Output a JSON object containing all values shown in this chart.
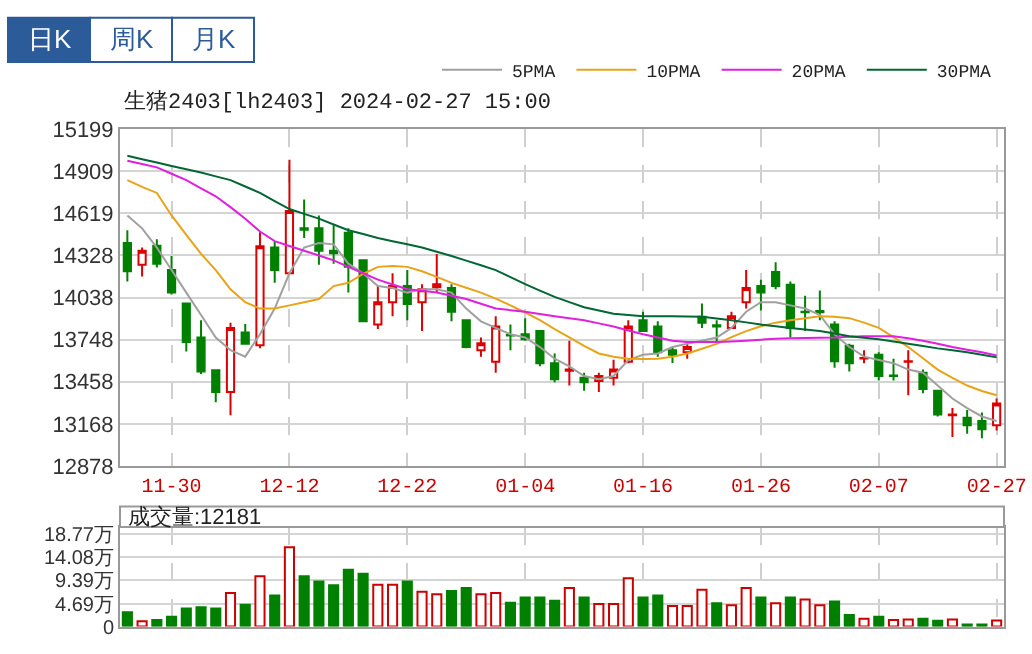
{
  "chart_data": [
    {
      "type": "candlestick",
      "title": "生猪2403[lh2403] 2024-02-27 15:00",
      "annotations": [
        "日K",
        "周K",
        "月K"
      ],
      "categories": [
        null,
        null,
        null,
        "11-30",
        null,
        null,
        null,
        null,
        null,
        null,
        null,
        "12-12",
        null,
        null,
        null,
        null,
        null,
        null,
        null,
        "12-22",
        null,
        null,
        null,
        null,
        null,
        null,
        null,
        "01-04",
        null,
        null,
        null,
        null,
        null,
        null,
        null,
        "01-16",
        null,
        null,
        null,
        null,
        null,
        null,
        null,
        "01-26",
        null,
        null,
        null,
        null,
        null,
        null,
        null,
        "02-07",
        null,
        null,
        null,
        null,
        null,
        null,
        null,
        "02-27"
      ],
      "ohlc": [
        [
          14413,
          14501,
          14148,
          14218
        ],
        [
          14263,
          14382,
          14183,
          14360
        ],
        [
          14395,
          14439,
          14245,
          14271
        ],
        [
          14227,
          14324,
          14059,
          14073
        ],
        [
          13997,
          13997,
          13666,
          13732
        ],
        [
          13763,
          13882,
          13511,
          13529
        ],
        [
          13538,
          13538,
          13317,
          13387
        ],
        [
          13387,
          13865,
          13228,
          13829
        ],
        [
          13798,
          13856,
          13719,
          13719
        ],
        [
          13710,
          14488,
          13688,
          14391
        ],
        [
          14382,
          14426,
          14139,
          14227
        ],
        [
          14205,
          14987,
          14205,
          14634
        ],
        [
          14514,
          14713,
          14448,
          14505
        ],
        [
          14514,
          14603,
          14263,
          14360
        ],
        [
          14360,
          14536,
          14271,
          14342
        ],
        [
          14484,
          14514,
          14072,
          14249
        ],
        [
          14294,
          14294,
          13874,
          13874
        ],
        [
          13852,
          14117,
          13821,
          14006
        ],
        [
          14006,
          14205,
          13909,
          14117
        ],
        [
          14117,
          14227,
          13882,
          13993
        ],
        [
          14006,
          14130,
          13807,
          14095
        ],
        [
          14108,
          14338,
          14072,
          14130
        ],
        [
          14103,
          14130,
          13874,
          13940
        ],
        [
          13882,
          13882,
          13688,
          13697
        ],
        [
          13675,
          13763,
          13631,
          13723
        ],
        [
          13595,
          13909,
          13520,
          13838
        ],
        [
          13780,
          13852,
          13675,
          13776
        ],
        [
          13785,
          13896,
          13741,
          13750
        ],
        [
          13807,
          13807,
          13564,
          13586
        ],
        [
          13586,
          13653,
          13454,
          13476
        ],
        [
          13534,
          13741,
          13432,
          13542
        ],
        [
          13485,
          13520,
          13396,
          13454
        ],
        [
          13463,
          13520,
          13387,
          13498
        ],
        [
          13485,
          13609,
          13432,
          13542
        ],
        [
          13595,
          13882,
          13586,
          13838
        ],
        [
          13882,
          13940,
          13807,
          13807
        ],
        [
          13838,
          13874,
          13631,
          13661
        ],
        [
          13675,
          13697,
          13587,
          13644
        ],
        [
          13661,
          13732,
          13617,
          13697
        ],
        [
          13905,
          13997,
          13829,
          13865
        ],
        [
          13847,
          13882,
          13719,
          13838
        ],
        [
          13829,
          13940,
          13821,
          13909
        ],
        [
          14006,
          14227,
          13962,
          14103
        ],
        [
          14117,
          14161,
          13949,
          14072
        ],
        [
          14214,
          14280,
          14095,
          14117
        ],
        [
          14126,
          14148,
          13763,
          13829
        ],
        [
          13940,
          14050,
          13807,
          13936
        ],
        [
          13945,
          14086,
          13882,
          13936
        ],
        [
          13852,
          13874,
          13555,
          13600
        ],
        [
          13706,
          13719,
          13529,
          13586
        ],
        [
          13618,
          13675,
          13586,
          13622
        ],
        [
          13644,
          13661,
          13467,
          13498
        ],
        [
          13502,
          13617,
          13467,
          13498
        ],
        [
          13595,
          13675,
          13365,
          13600
        ],
        [
          13520,
          13542,
          13379,
          13409
        ],
        [
          13396,
          13396,
          13219,
          13233
        ],
        [
          13228,
          13277,
          13078,
          13233
        ],
        [
          13211,
          13264,
          13100,
          13158
        ],
        [
          13188,
          13246,
          13069,
          13131
        ],
        [
          13158,
          13343,
          13122,
          13308
        ]
      ],
      "series": [
        {
          "name": "5PMA",
          "type": "line",
          "color": "#a0a0a0",
          "values": [
            14603,
            14514,
            14382,
            14227,
            14072,
            13918,
            13763,
            13675,
            13631,
            13785,
            13962,
            14205,
            14382,
            14413,
            14404,
            14271,
            14205,
            14117,
            14103,
            14072,
            14095,
            14095,
            14072,
            13962,
            13874,
            13829,
            13785,
            13763,
            13697,
            13617,
            13564,
            13498,
            13476,
            13498,
            13608,
            13644,
            13653,
            13697,
            13719,
            13741,
            13763,
            13829,
            13940,
            14006,
            14006,
            13984,
            13962,
            13918,
            13785,
            13697,
            13631,
            13608,
            13586,
            13542,
            13520,
            13432,
            13343,
            13277,
            13219,
            13188
          ]
        },
        {
          "name": "10PMA",
          "type": "line",
          "color": "#e8a317",
          "values": [
            14846,
            14800,
            14758,
            14603,
            14470,
            14338,
            14227,
            14095,
            14006,
            13962,
            13962,
            13984,
            14006,
            14028,
            14117,
            14139,
            14200,
            14249,
            14255,
            14249,
            14219,
            14180,
            14139,
            14105,
            14072,
            14030,
            13984,
            13935,
            13882,
            13820,
            13763,
            13705,
            13653,
            13630,
            13617,
            13615,
            13617,
            13631,
            13653,
            13685,
            13719,
            13765,
            13807,
            13840,
            13865,
            13882,
            13896,
            13909,
            13905,
            13896,
            13865,
            13829,
            13765,
            13697,
            13620,
            13542,
            13485,
            13432,
            13395,
            13365
          ]
        },
        {
          "name": "20PMA",
          "type": "line",
          "color": "#e020e0",
          "values": [
            14979,
            14957,
            14934,
            14890,
            14846,
            14790,
            14735,
            14660,
            14581,
            14492,
            14426,
            14393,
            14360,
            14327,
            14294,
            14249,
            14205,
            14161,
            14128,
            14095,
            14084,
            14072,
            14050,
            14028,
            13995,
            13962,
            13951,
            13940,
            13925,
            13909,
            13895,
            13882,
            13860,
            13838,
            13811,
            13785,
            13763,
            13741,
            13732,
            13732,
            13732,
            13736,
            13741,
            13748,
            13754,
            13757,
            13759,
            13761,
            13763,
            13768,
            13772,
            13772,
            13772,
            13757,
            13741,
            13719,
            13697,
            13679,
            13661,
            13639
          ]
        },
        {
          "name": "30PMA",
          "type": "line",
          "color": "#006633",
          "values": [
            15014,
            14990,
            14967,
            14943,
            14921,
            14899,
            14872,
            14846,
            14802,
            14758,
            14702,
            14647,
            14614,
            14581,
            14541,
            14501,
            14475,
            14448,
            14426,
            14404,
            14382,
            14353,
            14324,
            14292,
            14260,
            14227,
            14178,
            14130,
            14086,
            14042,
            14006,
            13971,
            13948,
            13926,
            13917,
            13909,
            13909,
            13909,
            13907,
            13905,
            13893,
            13882,
            13867,
            13852,
            13840,
            13829,
            13818,
            13807,
            13790,
            13772,
            13761,
            13750,
            13735,
            13719,
            13704,
            13688,
            13675,
            13661,
            13644,
            13626
          ]
        }
      ],
      "ylim": [
        12878,
        15199
      ],
      "yticks": [
        12878,
        13168,
        13458,
        13748,
        14038,
        14328,
        14619,
        14909,
        15199
      ],
      "grid": true,
      "legend": "top right"
    },
    {
      "type": "bar",
      "title": "成交量:12181",
      "categories": [
        null,
        null,
        null,
        null,
        null,
        null,
        null,
        null,
        null,
        null,
        null,
        null,
        null,
        null,
        null,
        null,
        null,
        null,
        null,
        null,
        null,
        null,
        null,
        null,
        null,
        null,
        null,
        null,
        null,
        null,
        null,
        null,
        null,
        null,
        null,
        null,
        null,
        null,
        null,
        null,
        null,
        null,
        null,
        null,
        null,
        null,
        null,
        null,
        null,
        null,
        null,
        null,
        null,
        null,
        null,
        null,
        null,
        null,
        null,
        null
      ],
      "values": [
        2.89,
        1.05,
        1.31,
        1.97,
        3.67,
        3.94,
        3.67,
        6.82,
        4.46,
        10.24,
        6.3,
        16.14,
        10.24,
        9.19,
        8.4,
        11.55,
        10.76,
        8.53,
        8.53,
        9.19,
        7.09,
        6.56,
        7.22,
        7.87,
        6.56,
        6.82,
        4.86,
        5.91,
        5.91,
        5.25,
        7.87,
        5.91,
        4.59,
        4.59,
        9.84,
        5.91,
        6.3,
        4.2,
        4.2,
        7.48,
        4.72,
        4.33,
        7.87,
        5.91,
        4.72,
        5.91,
        5.51,
        4.33,
        5.12,
        2.36,
        1.57,
        1.97,
        1.31,
        1.44,
        1.57,
        1.18,
        1.44,
        0.39,
        0.39,
        1.2181
      ],
      "colors": [
        "#008000",
        "#cc0000",
        "#008000",
        "#008000",
        "#008000",
        "#008000",
        "#008000",
        "#cc0000",
        "#008000",
        "#cc0000",
        "#008000",
        "#cc0000",
        "#008000",
        "#008000",
        "#008000",
        "#008000",
        "#008000",
        "#cc0000",
        "#cc0000",
        "#008000",
        "#cc0000",
        "#cc0000",
        "#008000",
        "#008000",
        "#cc0000",
        "#cc0000",
        "#008000",
        "#008000",
        "#008000",
        "#008000",
        "#cc0000",
        "#008000",
        "#cc0000",
        "#cc0000",
        "#cc0000",
        "#008000",
        "#008000",
        "#cc0000",
        "#cc0000",
        "#cc0000",
        "#008000",
        "#cc0000",
        "#cc0000",
        "#008000",
        "#cc0000",
        "#008000",
        "#cc0000",
        "#cc0000",
        "#008000",
        "#008000",
        "#cc0000",
        "#008000",
        "#cc0000",
        "#cc0000",
        "#008000",
        "#008000",
        "#cc0000",
        "#008000",
        "#008000",
        "#cc0000"
      ],
      "ylim": [
        0,
        20.3
      ],
      "yticks": [
        0,
        {
          "value": 4.69,
          "label": "4.69万"
        },
        {
          "value": 9.39,
          "label": "9.39万"
        },
        {
          "value": 14.08,
          "label": "14.08万"
        },
        {
          "value": 18.77,
          "label": "18.77万"
        }
      ],
      "grid": true,
      "tick_labels": "y"
    }
  ]
}
